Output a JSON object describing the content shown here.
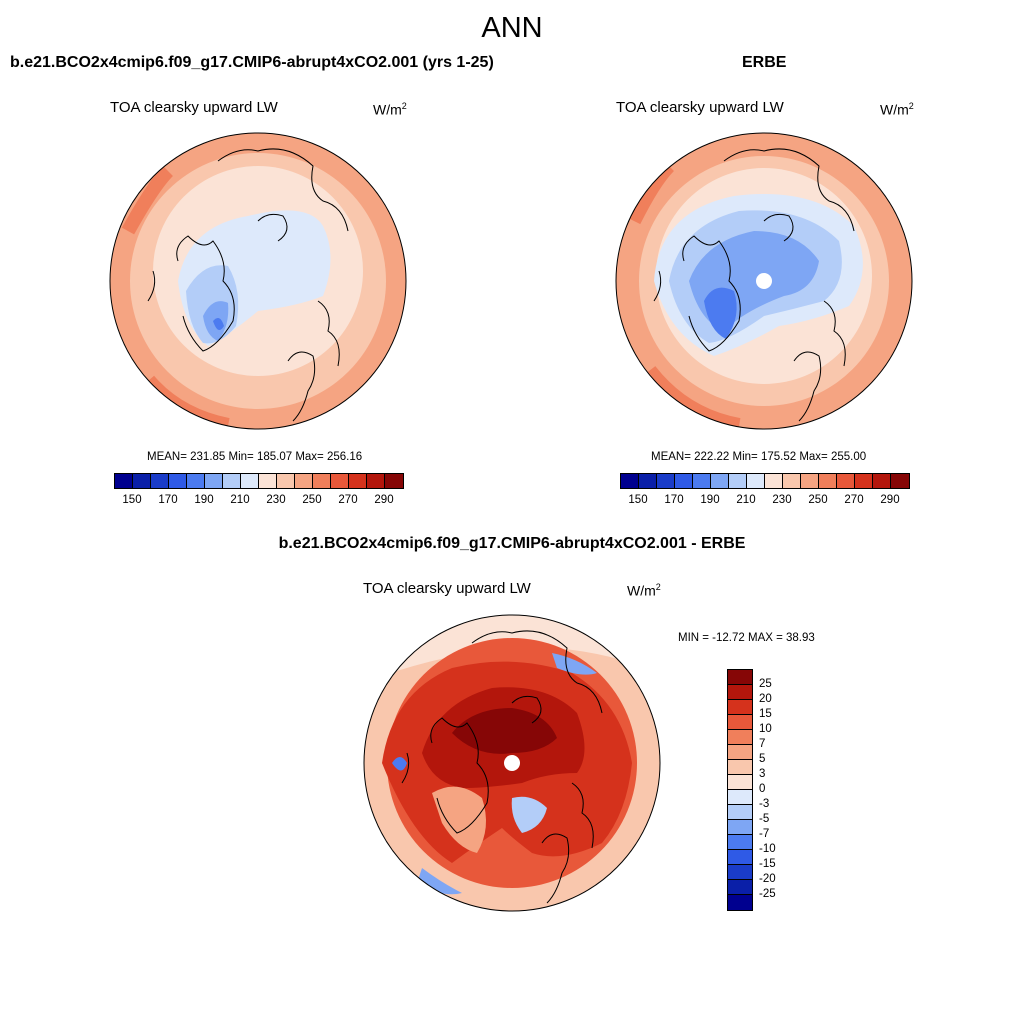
{
  "season": "ANN",
  "palette": [
    "#00008f",
    "#0a1fa8",
    "#1a3cc9",
    "#2f5ae6",
    "#4c7bf0",
    "#7ea6f4",
    "#b3cdf8",
    "#dde9fb",
    "#fbe3d6",
    "#f9c7ad",
    "#f5a482",
    "#f07f5b",
    "#e8583a",
    "#d5321c",
    "#b3160c",
    "#860606"
  ],
  "top_colorbar_ticks": [
    "150",
    "170",
    "190",
    "210",
    "230",
    "250",
    "270",
    "290"
  ],
  "left_panel": {
    "title": "b.e21.BCO2x4cmip6.f09_g17.CMIP6-abrupt4xCO2.001 (yrs 1-25)",
    "variable": "TOA clearsky upward LW",
    "units_base": "W/m",
    "units_exp": "2",
    "stats": "MEAN= 231.85  Min= 185.07  Max= 256.16",
    "map_icon": "polar-stereographic-map"
  },
  "right_panel": {
    "title": "ERBE",
    "variable": "TOA clearsky upward LW",
    "units_base": "W/m",
    "units_exp": "2",
    "stats": "MEAN= 222.22  Min= 175.52  Max= 255.00",
    "map_icon": "polar-stereographic-map"
  },
  "diff_panel": {
    "title": "b.e21.BCO2x4cmip6.f09_g17.CMIP6-abrupt4xCO2.001 - ERBE",
    "variable": "TOA clearsky upward LW",
    "units_base": "W/m",
    "units_exp": "2",
    "stats": "MIN = -12.72 MAX =  38.93",
    "colorbar_ticks": [
      "25",
      "20",
      "15",
      "10",
      "7",
      "5",
      "3",
      "0",
      "-3",
      "-5",
      "-7",
      "-10",
      "-15",
      "-20",
      "-25"
    ],
    "colorbar_colors": [
      "#860606",
      "#b3160c",
      "#d5321c",
      "#e8583a",
      "#f07f5b",
      "#f5a482",
      "#f9c7ad",
      "#fbe3d6",
      "#dde9fb",
      "#b3cdf8",
      "#7ea6f4",
      "#4c7bf0",
      "#2f5ae6",
      "#1a3cc9",
      "#0a1fa8",
      "#00008f"
    ],
    "map_icon": "polar-stereographic-map"
  }
}
